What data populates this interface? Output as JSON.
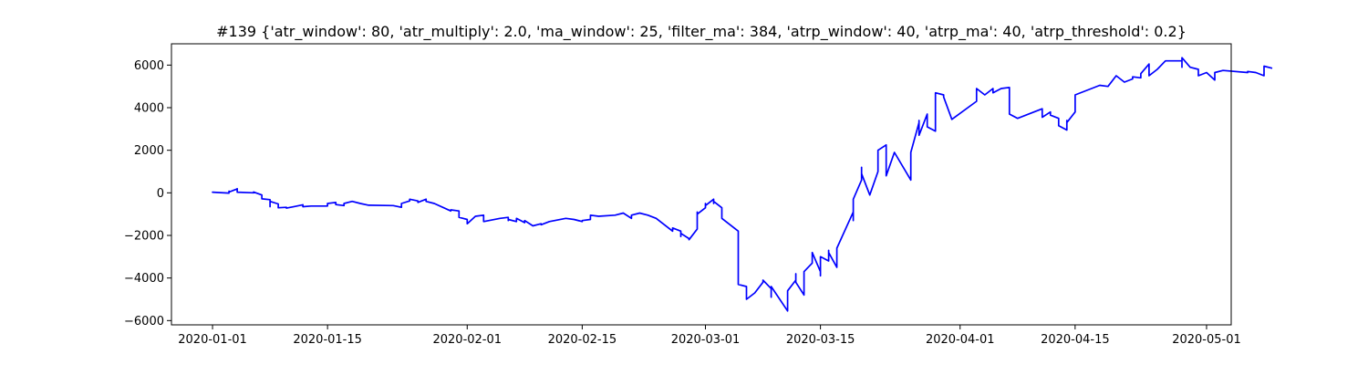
{
  "chart_data": {
    "type": "line",
    "title": "#139 {'atr_window': 80, 'atr_multiply': 2.0, 'ma_window': 25, 'filter_ma': 384, 'atrp_window': 40, 'atrp_ma': 40, 'atrp_threshold': 0.2}",
    "xlabel": "",
    "ylabel": "",
    "x_axis": {
      "kind": "date",
      "range": [
        "2019-12-27",
        "2020-05-04"
      ],
      "ticks": [
        {
          "date": "2020-01-01",
          "label": "2020-01-01"
        },
        {
          "date": "2020-01-15",
          "label": "2020-01-15"
        },
        {
          "date": "2020-02-01",
          "label": "2020-02-01"
        },
        {
          "date": "2020-02-15",
          "label": "2020-02-15"
        },
        {
          "date": "2020-03-01",
          "label": "2020-03-01"
        },
        {
          "date": "2020-03-15",
          "label": "2020-03-15"
        },
        {
          "date": "2020-04-01",
          "label": "2020-04-01"
        },
        {
          "date": "2020-04-15",
          "label": "2020-04-15"
        },
        {
          "date": "2020-05-01",
          "label": "2020-05-01"
        }
      ]
    },
    "y_axis": {
      "range": [
        -6200,
        7000
      ],
      "ticks": [
        {
          "value": -6000,
          "label": "−6000"
        },
        {
          "value": -4000,
          "label": "−4000"
        },
        {
          "value": -2000,
          "label": "−2000"
        },
        {
          "value": 0,
          "label": "0"
        },
        {
          "value": 2000,
          "label": "2000"
        },
        {
          "value": 4000,
          "label": "4000"
        },
        {
          "value": 6000,
          "label": "6000"
        }
      ]
    },
    "grid": false,
    "legend": "none",
    "series": [
      {
        "color": "#0000ff",
        "points": [
          [
            "2020-01-01",
            0
          ],
          [
            "2020-01-01",
            30
          ],
          [
            "2020-01-02",
            10
          ],
          [
            "2020-01-03",
            -10
          ],
          [
            "2020-01-03",
            80
          ],
          [
            "2020-01-03",
            40
          ],
          [
            "2020-01-04",
            180
          ],
          [
            "2020-01-04",
            100
          ],
          [
            "2020-01-04",
            200
          ],
          [
            "2020-01-04",
            30
          ],
          [
            "2020-01-06",
            0
          ],
          [
            "2020-01-06",
            40
          ],
          [
            "2020-01-07",
            -100
          ],
          [
            "2020-01-07",
            -280
          ],
          [
            "2020-01-08",
            -320
          ],
          [
            "2020-01-08",
            -350
          ],
          [
            "2020-01-08",
            -650
          ],
          [
            "2020-01-08",
            -400
          ],
          [
            "2020-01-09",
            -520
          ],
          [
            "2020-01-09",
            -700
          ],
          [
            "2020-01-10",
            -680
          ],
          [
            "2020-01-10",
            -720
          ],
          [
            "2020-01-11",
            -640
          ],
          [
            "2020-01-12",
            -560
          ],
          [
            "2020-01-12",
            -650
          ],
          [
            "2020-01-13",
            -620
          ],
          [
            "2020-01-15",
            -620
          ],
          [
            "2020-01-15",
            -500
          ],
          [
            "2020-01-16",
            -450
          ],
          [
            "2020-01-16",
            -550
          ],
          [
            "2020-01-17",
            -600
          ],
          [
            "2020-01-17",
            -500
          ],
          [
            "2020-01-18",
            -400
          ],
          [
            "2020-01-19",
            -500
          ],
          [
            "2020-01-20",
            -580
          ],
          [
            "2020-01-23",
            -600
          ],
          [
            "2020-01-24",
            -680
          ],
          [
            "2020-01-24",
            -500
          ],
          [
            "2020-01-25",
            -380
          ],
          [
            "2020-01-25",
            -300
          ],
          [
            "2020-01-26",
            -380
          ],
          [
            "2020-01-26",
            -450
          ],
          [
            "2020-01-27",
            -300
          ],
          [
            "2020-01-27",
            -400
          ],
          [
            "2020-01-28",
            -500
          ],
          [
            "2020-01-30",
            -850
          ],
          [
            "2020-01-30",
            -800
          ],
          [
            "2020-01-31",
            -850
          ],
          [
            "2020-01-31",
            -1150
          ],
          [
            "2020-02-01",
            -1250
          ],
          [
            "2020-02-01",
            -1450
          ],
          [
            "2020-02-02",
            -1100
          ],
          [
            "2020-02-03",
            -1050
          ],
          [
            "2020-02-03",
            -1350
          ],
          [
            "2020-02-05",
            -1200
          ],
          [
            "2020-02-06",
            -1150
          ],
          [
            "2020-02-06",
            -1300
          ],
          [
            "2020-02-06",
            -1250
          ],
          [
            "2020-02-07",
            -1350
          ],
          [
            "2020-02-07",
            -1200
          ],
          [
            "2020-02-08",
            -1400
          ],
          [
            "2020-02-08",
            -1300
          ],
          [
            "2020-02-09",
            -1550
          ],
          [
            "2020-02-10",
            -1450
          ],
          [
            "2020-02-10",
            -1500
          ],
          [
            "2020-02-11",
            -1350
          ],
          [
            "2020-02-13",
            -1200
          ],
          [
            "2020-02-14",
            -1250
          ],
          [
            "2020-02-15",
            -1350
          ],
          [
            "2020-02-15",
            -1300
          ],
          [
            "2020-02-16",
            -1250
          ],
          [
            "2020-02-16",
            -1050
          ],
          [
            "2020-02-17",
            -1100
          ],
          [
            "2020-02-19",
            -1050
          ],
          [
            "2020-02-20",
            -950
          ],
          [
            "2020-02-21",
            -1200
          ],
          [
            "2020-02-21",
            -1050
          ],
          [
            "2020-02-22",
            -950
          ],
          [
            "2020-02-23",
            -1050
          ],
          [
            "2020-02-24",
            -1200
          ],
          [
            "2020-02-26",
            -1800
          ],
          [
            "2020-02-26",
            -1650
          ],
          [
            "2020-02-27",
            -1800
          ],
          [
            "2020-02-27",
            -2050
          ],
          [
            "2020-02-27",
            -1900
          ],
          [
            "2020-02-28",
            -2150
          ],
          [
            "2020-02-28",
            -2200
          ],
          [
            "2020-02-29",
            -1700
          ],
          [
            "2020-02-29",
            -1400
          ],
          [
            "2020-02-29",
            -900
          ],
          [
            "2020-02-29",
            -1000
          ],
          [
            "2020-03-01",
            -700
          ],
          [
            "2020-03-01",
            -600
          ],
          [
            "2020-03-01",
            -550
          ],
          [
            "2020-03-01",
            -500
          ],
          [
            "2020-03-01",
            -600
          ],
          [
            "2020-03-02",
            -300
          ],
          [
            "2020-03-02",
            -500
          ],
          [
            "2020-03-02",
            -400
          ],
          [
            "2020-03-03",
            -700
          ],
          [
            "2020-03-03",
            -1200
          ],
          [
            "2020-03-05",
            -1800
          ],
          [
            "2020-03-05",
            -2800
          ],
          [
            "2020-03-05",
            -3800
          ],
          [
            "2020-03-05",
            -4300
          ],
          [
            "2020-03-06",
            -4400
          ],
          [
            "2020-03-06",
            -5000
          ],
          [
            "2020-03-07",
            -4700
          ],
          [
            "2020-03-08",
            -4200
          ],
          [
            "2020-03-08",
            -4100
          ],
          [
            "2020-03-09",
            -4500
          ],
          [
            "2020-03-09",
            -4900
          ],
          [
            "2020-03-09",
            -4400
          ],
          [
            "2020-03-11",
            -5550
          ],
          [
            "2020-03-11",
            -4600
          ],
          [
            "2020-03-12",
            -4100
          ],
          [
            "2020-03-12",
            -3800
          ],
          [
            "2020-03-12",
            -4200
          ],
          [
            "2020-03-13",
            -4800
          ],
          [
            "2020-03-13",
            -3700
          ],
          [
            "2020-03-14",
            -3300
          ],
          [
            "2020-03-14",
            -2800
          ],
          [
            "2020-03-15",
            -3700
          ],
          [
            "2020-03-15",
            -3900
          ],
          [
            "2020-03-15",
            -3000
          ],
          [
            "2020-03-16",
            -3200
          ],
          [
            "2020-03-16",
            -2700
          ],
          [
            "2020-03-16",
            -2800
          ],
          [
            "2020-03-17",
            -3500
          ],
          [
            "2020-03-17",
            -2600
          ],
          [
            "2020-03-19",
            -900
          ],
          [
            "2020-03-19",
            -1300
          ],
          [
            "2020-03-19",
            -300
          ],
          [
            "2020-03-20",
            600
          ],
          [
            "2020-03-20",
            1200
          ],
          [
            "2020-03-20",
            900
          ],
          [
            "2020-03-21",
            -100
          ],
          [
            "2020-03-22",
            1000
          ],
          [
            "2020-03-22",
            2000
          ],
          [
            "2020-03-23",
            2250
          ],
          [
            "2020-03-23",
            800
          ],
          [
            "2020-03-24",
            1900
          ],
          [
            "2020-03-26",
            600
          ],
          [
            "2020-03-26",
            1900
          ],
          [
            "2020-03-27",
            3300
          ],
          [
            "2020-03-27",
            3400
          ],
          [
            "2020-03-27",
            2700
          ],
          [
            "2020-03-28",
            3700
          ],
          [
            "2020-03-28",
            3100
          ],
          [
            "2020-03-29",
            2900
          ],
          [
            "2020-03-29",
            4700
          ],
          [
            "2020-03-30",
            4600
          ],
          [
            "2020-03-30",
            4500
          ],
          [
            "2020-03-31",
            3450
          ],
          [
            "2020-04-03",
            4300
          ],
          [
            "2020-04-03",
            4800
          ],
          [
            "2020-04-03",
            4900
          ],
          [
            "2020-04-04",
            4600
          ],
          [
            "2020-04-05",
            4900
          ],
          [
            "2020-04-05",
            4700
          ],
          [
            "2020-04-06",
            4900
          ],
          [
            "2020-04-07",
            4950
          ],
          [
            "2020-04-07",
            3700
          ],
          [
            "2020-04-08",
            3500
          ],
          [
            "2020-04-10",
            3800
          ],
          [
            "2020-04-11",
            3950
          ],
          [
            "2020-04-11",
            3550
          ],
          [
            "2020-04-12",
            3800
          ],
          [
            "2020-04-12",
            3650
          ],
          [
            "2020-04-13",
            3500
          ],
          [
            "2020-04-13",
            3150
          ],
          [
            "2020-04-14",
            2950
          ],
          [
            "2020-04-14",
            3400
          ],
          [
            "2020-04-14",
            3300
          ],
          [
            "2020-04-15",
            3800
          ],
          [
            "2020-04-15",
            4600
          ],
          [
            "2020-04-18",
            5050
          ],
          [
            "2020-04-19",
            5000
          ],
          [
            "2020-04-20",
            5500
          ],
          [
            "2020-04-21",
            5200
          ],
          [
            "2020-04-22",
            5350
          ],
          [
            "2020-04-22",
            5450
          ],
          [
            "2020-04-23",
            5400
          ],
          [
            "2020-04-23",
            5600
          ],
          [
            "2020-04-24",
            6050
          ],
          [
            "2020-04-24",
            5500
          ],
          [
            "2020-04-25",
            5800
          ],
          [
            "2020-04-26",
            6200
          ],
          [
            "2020-04-28",
            6200
          ],
          [
            "2020-04-28",
            5900
          ],
          [
            "2020-04-28",
            6350
          ],
          [
            "2020-04-29",
            5900
          ],
          [
            "2020-04-30",
            5800
          ],
          [
            "2020-04-30",
            5500
          ],
          [
            "2020-05-01",
            5650
          ],
          [
            "2020-05-02",
            5300
          ],
          [
            "2020-05-02",
            5650
          ],
          [
            "2020-05-03",
            5750
          ],
          [
            "2020-05-06",
            5650
          ],
          [
            "2020-05-06",
            5700
          ],
          [
            "2020-05-07",
            5650
          ],
          [
            "2020-05-08",
            5500
          ],
          [
            "2020-05-08",
            5950
          ],
          [
            "2020-05-09",
            5850
          ]
        ]
      }
    ]
  }
}
